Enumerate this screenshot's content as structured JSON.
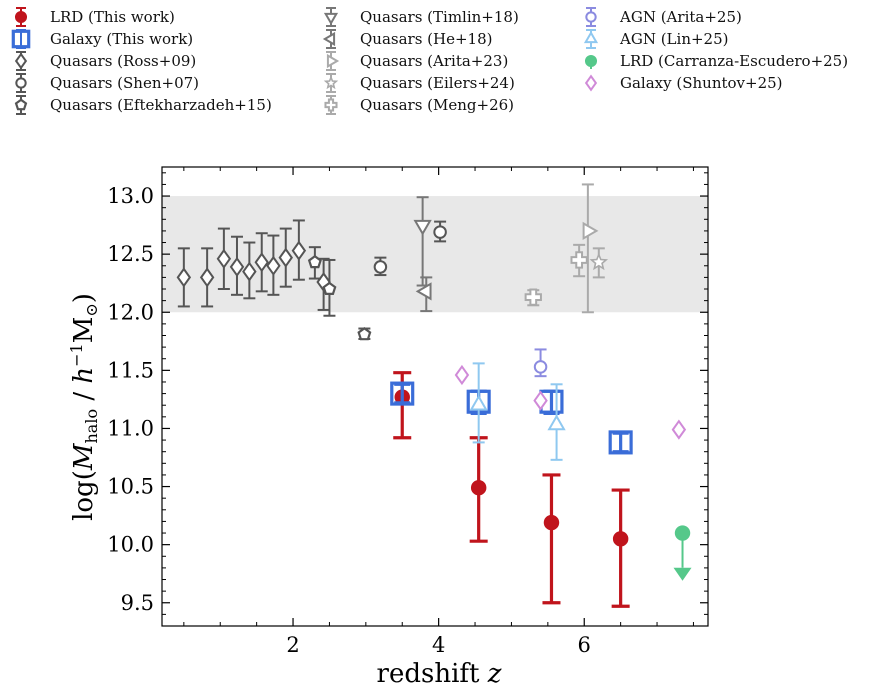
{
  "chart_data": {
    "type": "scatter",
    "xlabel": "redshift z",
    "ylabel": "log(M_halo / h^-1 M_⊙)",
    "xlim": [
      0.2,
      7.7
    ],
    "ylim": [
      9.3,
      13.25
    ],
    "x_ticks": [
      2,
      4,
      6
    ],
    "y_ticks": [
      9.5,
      10.0,
      10.5,
      11.0,
      11.5,
      12.0,
      12.5,
      13.0
    ],
    "x_tick_labels": [
      "2",
      "4",
      "6"
    ],
    "y_tick_labels": [
      "9.5",
      "10.0",
      "10.5",
      "11.0",
      "11.5",
      "12.0",
      "12.5",
      "13.0"
    ],
    "shaded_band": {
      "y_range": [
        12.0,
        13.0
      ],
      "color": "#e8e8e8"
    },
    "grid": false,
    "series": [
      {
        "name": "LRD (This work)",
        "marker": "filled-circle",
        "color": "#c0141c",
        "points": [
          {
            "x": 3.5,
            "y": 11.27,
            "lo": 10.92,
            "hi": 11.48
          },
          {
            "x": 4.55,
            "y": 10.49,
            "lo": 10.03,
            "hi": 10.92
          },
          {
            "x": 5.55,
            "y": 10.19,
            "lo": 9.5,
            "hi": 10.6
          },
          {
            "x": 6.5,
            "y": 10.05,
            "lo": 9.47,
            "hi": 10.47
          }
        ]
      },
      {
        "name": "Galaxy (This work)",
        "marker": "square-errbar",
        "color": "#3a6dd8",
        "points": [
          {
            "x": 3.5,
            "y": 11.3,
            "lo": 11.22,
            "hi": 11.38
          },
          {
            "x": 4.55,
            "y": 11.23,
            "lo": 11.13,
            "hi": 11.32
          },
          {
            "x": 5.55,
            "y": 11.23,
            "lo": 11.13,
            "hi": 11.32
          },
          {
            "x": 6.5,
            "y": 10.88,
            "lo": 10.8,
            "hi": 10.96
          }
        ]
      },
      {
        "name": "Quasars (Ross+09)",
        "marker": "diamond",
        "color": "#555555",
        "points": [
          {
            "x": 0.5,
            "y": 12.3,
            "lo": 12.05,
            "hi": 12.55
          },
          {
            "x": 0.82,
            "y": 12.3,
            "lo": 12.05,
            "hi": 12.55
          },
          {
            "x": 1.05,
            "y": 12.46,
            "lo": 12.2,
            "hi": 12.72
          },
          {
            "x": 1.23,
            "y": 12.39,
            "lo": 12.15,
            "hi": 12.65
          },
          {
            "x": 1.4,
            "y": 12.35,
            "lo": 12.12,
            "hi": 12.6
          },
          {
            "x": 1.57,
            "y": 12.43,
            "lo": 12.18,
            "hi": 12.68
          },
          {
            "x": 1.73,
            "y": 12.4,
            "lo": 12.15,
            "hi": 12.66
          },
          {
            "x": 1.9,
            "y": 12.47,
            "lo": 12.22,
            "hi": 12.72
          },
          {
            "x": 2.08,
            "y": 12.53,
            "lo": 12.28,
            "hi": 12.79
          },
          {
            "x": 2.42,
            "y": 12.26,
            "lo": 12.02,
            "hi": 12.46
          }
        ]
      },
      {
        "name": "Quasars (Shen+07)",
        "marker": "circle",
        "color": "#555555",
        "points": [
          {
            "x": 3.2,
            "y": 12.39,
            "lo": 12.32,
            "hi": 12.47
          },
          {
            "x": 4.02,
            "y": 12.69,
            "lo": 12.61,
            "hi": 12.78
          }
        ]
      },
      {
        "name": "Quasars (Eftekharzadeh+15)",
        "marker": "pentagon",
        "color": "#555555",
        "points": [
          {
            "x": 2.3,
            "y": 12.43,
            "lo": 12.29,
            "hi": 12.56
          },
          {
            "x": 2.5,
            "y": 12.2,
            "lo": 11.97,
            "hi": 12.45
          },
          {
            "x": 2.98,
            "y": 11.81,
            "lo": 11.77,
            "hi": 11.86
          }
        ]
      },
      {
        "name": "Quasars (Timlin+18)",
        "marker": "triangle-down",
        "color": "#777777",
        "points": [
          {
            "x": 3.78,
            "y": 12.75,
            "lo": 12.23,
            "hi": 12.99
          }
        ]
      },
      {
        "name": "Quasars (He+18)",
        "marker": "triangle-left",
        "color": "#777777",
        "points": [
          {
            "x": 3.83,
            "y": 12.18,
            "lo": 12.01,
            "hi": 12.3
          }
        ]
      },
      {
        "name": "Quasars (Arita+23)",
        "marker": "triangle-right",
        "color": "#aaaaaa",
        "points": [
          {
            "x": 6.05,
            "y": 12.7,
            "lo": 12.0,
            "hi": 13.1
          }
        ]
      },
      {
        "name": "Quasars (Eilers+24)",
        "marker": "star",
        "color": "#aaaaaa",
        "points": [
          {
            "x": 6.2,
            "y": 12.43,
            "lo": 12.3,
            "hi": 12.55
          }
        ]
      },
      {
        "name": "Quasars (Meng+26)",
        "marker": "plus",
        "color": "#aaaaaa",
        "points": [
          {
            "x": 5.3,
            "y": 12.13,
            "lo": 12.06,
            "hi": 12.19
          },
          {
            "x": 5.93,
            "y": 12.45,
            "lo": 12.31,
            "hi": 12.58
          }
        ]
      },
      {
        "name": "AGN (Arita+25)",
        "marker": "circle",
        "color": "#8b8be0",
        "points": [
          {
            "x": 5.4,
            "y": 11.53,
            "lo": 11.45,
            "hi": 11.68
          }
        ]
      },
      {
        "name": "AGN (Lin+25)",
        "marker": "triangle-up",
        "color": "#8fc8f0",
        "points": [
          {
            "x": 4.55,
            "y": 11.2,
            "lo": 10.88,
            "hi": 11.56
          },
          {
            "x": 5.62,
            "y": 11.03,
            "lo": 10.73,
            "hi": 11.38
          }
        ]
      },
      {
        "name": "LRD (Carranza-Escudero+25)",
        "marker": "filled-circle-upper-limit",
        "color": "#55c88a",
        "points": [
          {
            "x": 7.35,
            "y": 10.1,
            "lo": 9.75,
            "hi": 10.1
          }
        ]
      },
      {
        "name": "Galaxy (Shuntov+25)",
        "marker": "diamond",
        "color": "#d08ad8",
        "points": [
          {
            "x": 4.32,
            "y": 11.46
          },
          {
            "x": 5.4,
            "y": 11.24
          },
          {
            "x": 7.3,
            "y": 10.99
          }
        ]
      }
    ]
  }
}
